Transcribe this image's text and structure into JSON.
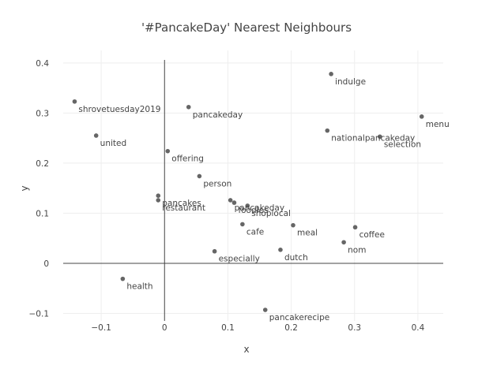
{
  "chart_data": {
    "type": "scatter",
    "title": "'#PancakeDay' Nearest Neighbours",
    "xlabel": "x",
    "ylabel": "y",
    "xlim": [
      -0.16,
      0.44
    ],
    "ylim": [
      -0.115,
      0.425
    ],
    "xticks": [
      -0.1,
      0,
      0.1,
      0.2,
      0.3,
      0.4
    ],
    "xtick_labels": [
      "−0.1",
      "0",
      "0.1",
      "0.2",
      "0.3",
      "0.4"
    ],
    "yticks": [
      -0.1,
      0,
      0.1,
      0.2,
      0.3,
      0.4
    ],
    "ytick_labels": [
      "−0.1",
      "0",
      "0.1",
      "0.2",
      "0.3",
      "0.4"
    ],
    "grid": true,
    "points": [
      {
        "label": "indulge",
        "x": 0.263,
        "y": 0.378
      },
      {
        "label": "shrovetuesday2019",
        "x": -0.142,
        "y": 0.323
      },
      {
        "label": "pancakeday",
        "x": 0.038,
        "y": 0.312
      },
      {
        "label": "menu",
        "x": 0.406,
        "y": 0.293
      },
      {
        "label": "nationalpancakeday",
        "x": 0.257,
        "y": 0.265
      },
      {
        "label": "selection",
        "x": 0.34,
        "y": 0.253
      },
      {
        "label": "united",
        "x": -0.108,
        "y": 0.255
      },
      {
        "label": "offering",
        "x": 0.005,
        "y": 0.224
      },
      {
        "label": "person",
        "x": 0.055,
        "y": 0.174
      },
      {
        "label": "pancakes",
        "x": -0.01,
        "y": 0.135
      },
      {
        "label": "restaurant",
        "x": -0.01,
        "y": 0.126
      },
      {
        "label": "pancakeday",
        "x": 0.104,
        "y": 0.126
      },
      {
        "label": "foodies",
        "x": 0.11,
        "y": 0.121
      },
      {
        "label": "shoplocal",
        "x": 0.131,
        "y": 0.115
      },
      {
        "label": "cafe",
        "x": 0.123,
        "y": 0.078
      },
      {
        "label": "meal",
        "x": 0.203,
        "y": 0.076
      },
      {
        "label": "coffee",
        "x": 0.301,
        "y": 0.072
      },
      {
        "label": "nom",
        "x": 0.283,
        "y": 0.042
      },
      {
        "label": "especially",
        "x": 0.079,
        "y": 0.024
      },
      {
        "label": "dutch",
        "x": 0.183,
        "y": 0.027
      },
      {
        "label": "health",
        "x": -0.066,
        "y": -0.031
      },
      {
        "label": "pancakerecipe",
        "x": 0.159,
        "y": -0.093
      }
    ]
  }
}
